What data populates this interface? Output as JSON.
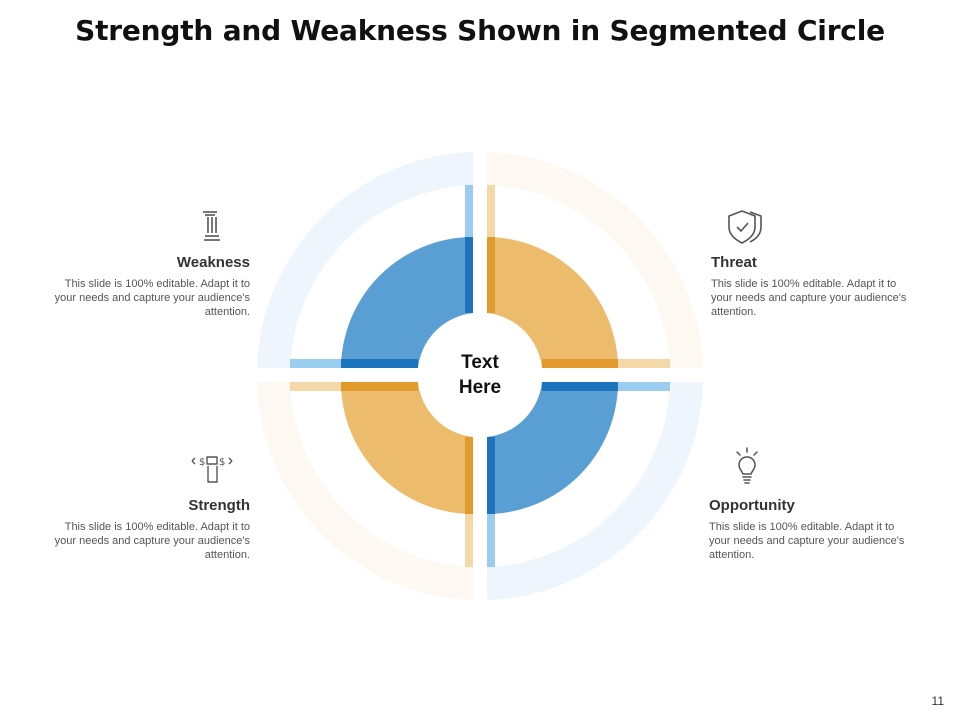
{
  "title": "Strength and Weakness Shown in Segmented Circle",
  "center": {
    "line1": "Text",
    "line2": "Here"
  },
  "blocks": {
    "weakness": {
      "heading": "Weakness",
      "desc": "This slide is 100% editable. Adapt it to your needs and capture your audience's attention.",
      "icon": "pillar-icon"
    },
    "threat": {
      "heading": "Threat",
      "desc": "This slide is 100% editable. Adapt it to your needs and capture your audience's attention.",
      "icon": "shield-icon"
    },
    "strength": {
      "heading": "Strength",
      "desc": "This slide is 100% editable. Adapt it to your needs and capture your audience's attention.",
      "icon": "hand-money-icon"
    },
    "opportunity": {
      "heading": "Opportunity",
      "desc": "This slide is 100% editable. Adapt it to your needs and capture your audience's attention.",
      "icon": "lightbulb-icon"
    }
  },
  "colors": {
    "blue": "#5A9FD4",
    "blue_dark": "#1C75BC",
    "blue_light": "#9ACDEF",
    "blue_ring": "#EEF5FC",
    "orange": "#ECBB6B",
    "orange_dark": "#E39A2C",
    "orange_light": "#F5D8A8",
    "orange_ring": "#FDF9F2"
  },
  "page_number": "11"
}
